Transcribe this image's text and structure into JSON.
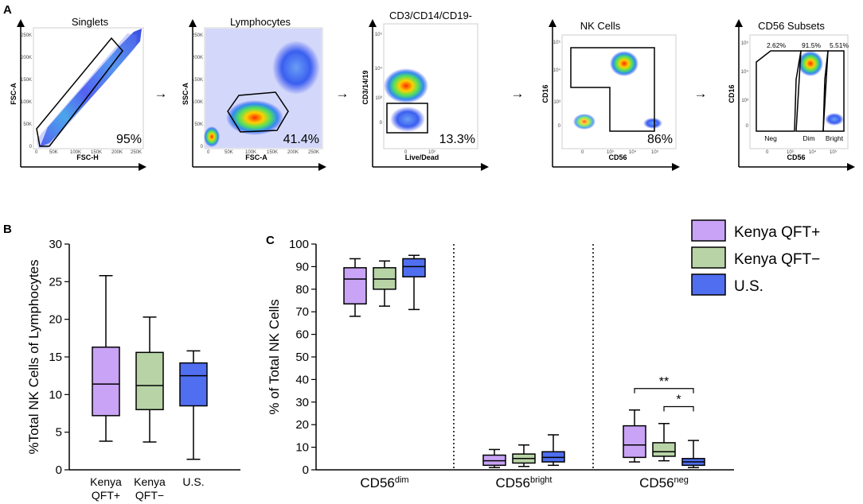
{
  "colors": {
    "kenya_pos": "#c9a3f5",
    "kenya_neg": "#b8d4a6",
    "us": "#4f6ef0",
    "axis": "#000000"
  },
  "panel_a": {
    "letter": "A",
    "arrow_glyph": "→",
    "plots": [
      {
        "title": "Singlets",
        "xlabel": "FSC-H",
        "ylabel": "FSC-A",
        "percent": "95%",
        "xticks": [
          "0",
          "50K",
          "100K",
          "150K",
          "200K",
          "250K"
        ],
        "yticks": [
          "0",
          "50K",
          "100K",
          "150K",
          "200K",
          "250K"
        ]
      },
      {
        "title": "Lymphocytes",
        "xlabel": "FSC-A",
        "ylabel": "SSC-A",
        "percent": "41.4%",
        "xticks": [
          "0",
          "50K",
          "100K",
          "150K",
          "200K",
          "250K"
        ],
        "yticks": [
          "0",
          "50K",
          "100K",
          "150K",
          "200K",
          "250K"
        ]
      },
      {
        "title": "CD3/CD14/CD19-",
        "xlabel": "Live/Dead",
        "ylabel": "CD3/14/19",
        "percent": "13.3%",
        "xticks": [
          "0",
          "10³"
        ],
        "yticks": [
          "0",
          "10³",
          "10⁴",
          "10⁵"
        ]
      },
      {
        "title": "NK Cells",
        "xlabel": "CD56",
        "ylabel": "CD16",
        "percent": "86%",
        "xticks": [
          "0",
          "10³",
          "10⁴",
          "10⁵"
        ],
        "yticks": [
          "0",
          "10³",
          "10⁴",
          "10⁵"
        ]
      },
      {
        "title": "CD56 Subsets",
        "xlabel": "CD56",
        "ylabel": "CD16",
        "percent": "",
        "xticks": [
          "0",
          "10³",
          "10⁴",
          "10⁵"
        ],
        "yticks": [
          "0",
          "10³",
          "10⁴",
          "10⁵"
        ],
        "subset_percents": [
          "2.62%",
          "91.5%",
          "5.51%"
        ],
        "subset_labels": [
          "Neg",
          "Dim",
          "Bright"
        ]
      }
    ]
  },
  "chart_data": [
    {
      "panel": "B",
      "type": "boxplot",
      "ylabel": "%Total NK Cells of Lymphocytes",
      "ylim": [
        0,
        30
      ],
      "yticks": [
        0,
        5,
        10,
        15,
        20,
        25,
        30
      ],
      "categories": [
        {
          "line1": "Kenya",
          "line2": "QFT+"
        },
        {
          "line1": "Kenya",
          "line2": "QFT−"
        },
        {
          "line1": "U.S.",
          "line2": ""
        }
      ],
      "boxes": [
        {
          "series": "Kenya QFT+",
          "min": 3.8,
          "q1": 7.2,
          "median": 11.4,
          "q3": 16.3,
          "max": 25.8
        },
        {
          "series": "Kenya QFT−",
          "min": 3.7,
          "q1": 8.0,
          "median": 11.2,
          "q3": 15.6,
          "max": 20.3
        },
        {
          "series": "U.S.",
          "min": 1.4,
          "q1": 8.5,
          "median": 12.5,
          "q3": 14.2,
          "max": 15.8
        }
      ]
    },
    {
      "panel": "C",
      "type": "boxplot",
      "ylabel": "% of Total NK Cells",
      "ylim": [
        0,
        100
      ],
      "yticks": [
        0,
        10,
        20,
        30,
        40,
        50,
        60,
        70,
        80,
        90,
        100
      ],
      "groups": [
        {
          "base": "CD56",
          "sup": "dim"
        },
        {
          "base": "CD56",
          "sup": "bright"
        },
        {
          "base": "CD56",
          "sup": "neg"
        }
      ],
      "series": [
        "Kenya QFT+",
        "Kenya QFT−",
        "U.S."
      ],
      "boxes": [
        [
          {
            "min": 68,
            "q1": 73.5,
            "median": 84.5,
            "q3": 89.5,
            "max": 93.5
          },
          {
            "min": 72.5,
            "q1": 80,
            "median": 84.5,
            "q3": 89.5,
            "max": 92.5
          },
          {
            "min": 71,
            "q1": 85.5,
            "median": 90,
            "q3": 93.5,
            "max": 95
          }
        ],
        [
          {
            "min": 1,
            "q1": 2,
            "median": 4,
            "q3": 6.5,
            "max": 9
          },
          {
            "min": 1.5,
            "q1": 3,
            "median": 5,
            "q3": 7,
            "max": 11
          },
          {
            "min": 2,
            "q1": 3.5,
            "median": 5.5,
            "q3": 8,
            "max": 15.5
          }
        ],
        [
          {
            "min": 3.5,
            "q1": 5.5,
            "median": 11,
            "q3": 19.5,
            "max": 26.5
          },
          {
            "min": 4,
            "q1": 6,
            "median": 8,
            "q3": 12,
            "max": 20.5
          },
          {
            "min": 1,
            "q1": 2,
            "median": 3.5,
            "q3": 5,
            "max": 13
          }
        ]
      ],
      "significance": [
        {
          "label": "**",
          "group": 2,
          "from_series": 0,
          "to_series": 2,
          "y": 36
        },
        {
          "label": "*",
          "group": 2,
          "from_series": 1,
          "to_series": 2,
          "y": 28
        }
      ],
      "legend": [
        "Kenya QFT+",
        "Kenya QFT−",
        "U.S."
      ]
    }
  ],
  "panel_labels": {
    "b": "B",
    "c": "C"
  }
}
